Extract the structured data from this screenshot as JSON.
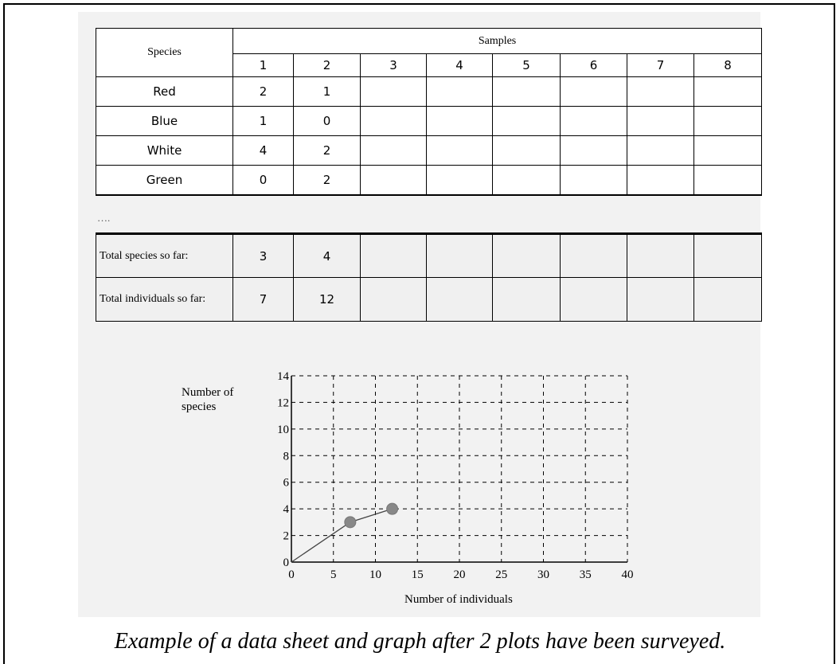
{
  "table": {
    "species_header": "Species",
    "samples_header": "Samples",
    "sample_numbers": [
      "1",
      "2",
      "3",
      "4",
      "5",
      "6",
      "7",
      "8"
    ],
    "rows": [
      {
        "name": "Red",
        "values": [
          "2",
          "1",
          "",
          "",
          "",
          "",
          "",
          ""
        ]
      },
      {
        "name": "Blue",
        "values": [
          "1",
          "0",
          "",
          "",
          "",
          "",
          "",
          ""
        ]
      },
      {
        "name": "White",
        "values": [
          "4",
          "2",
          "",
          "",
          "",
          "",
          "",
          ""
        ]
      },
      {
        "name": "Green",
        "values": [
          "0",
          "2",
          "",
          "",
          "",
          "",
          "",
          ""
        ]
      }
    ],
    "ellipsis": "….",
    "totals": [
      {
        "label": "Total species so far:",
        "values": [
          "3",
          "4",
          "",
          "",
          "",
          "",
          "",
          ""
        ]
      },
      {
        "label": "Total individuals so far:",
        "values": [
          "7",
          "12",
          "",
          "",
          "",
          "",
          "",
          ""
        ]
      }
    ]
  },
  "chart_data": {
    "type": "line",
    "title": "",
    "xlabel": "Number of individuals",
    "ylabel": "Number of species",
    "xlim": [
      0,
      40
    ],
    "ylim": [
      0,
      14
    ],
    "xticks": [
      0,
      5,
      10,
      15,
      20,
      25,
      30,
      35,
      40
    ],
    "yticks": [
      0,
      2,
      4,
      6,
      8,
      10,
      12,
      14
    ],
    "grid": true,
    "line": {
      "x": [
        0,
        7,
        12
      ],
      "y": [
        0,
        3,
        4
      ]
    },
    "points": {
      "x": [
        7,
        12
      ],
      "y": [
        3,
        4
      ]
    },
    "colors": {
      "line": "#444444",
      "marker": "#888888",
      "grid": "#000000"
    }
  },
  "caption": "Example of a data sheet and graph after 2 plots have been surveyed."
}
